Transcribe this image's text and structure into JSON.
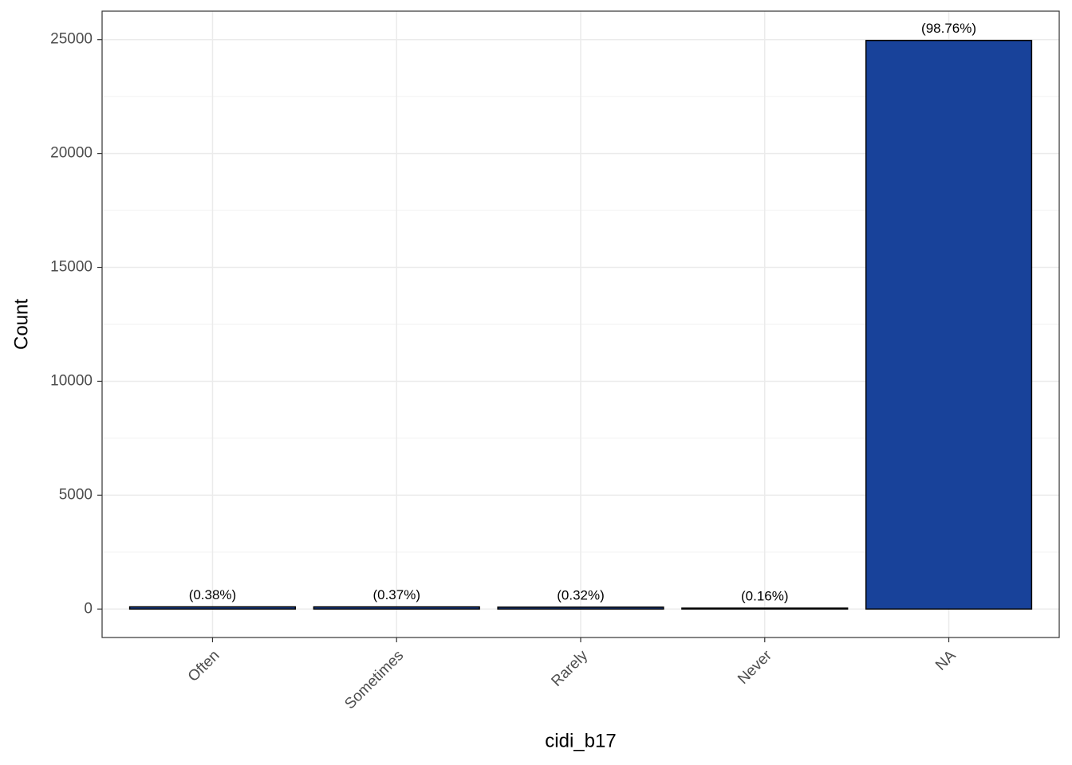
{
  "chart_data": {
    "type": "bar",
    "x_label": "cidi_b17",
    "y_label": "Count",
    "categories": [
      "Often",
      "Sometimes",
      "Rarely",
      "Never",
      "NA"
    ],
    "values": [
      96,
      94,
      81,
      40,
      24965
    ],
    "annotations": [
      "(0.38%)",
      "(0.37%)",
      "(0.32%)",
      "(0.16%)",
      "(98.76%)"
    ],
    "color": "#18429a",
    "ylim": [
      -1250,
      26250
    ],
    "yticks": [
      0,
      5000,
      10000,
      15000,
      20000,
      25000
    ],
    "grid": true
  }
}
